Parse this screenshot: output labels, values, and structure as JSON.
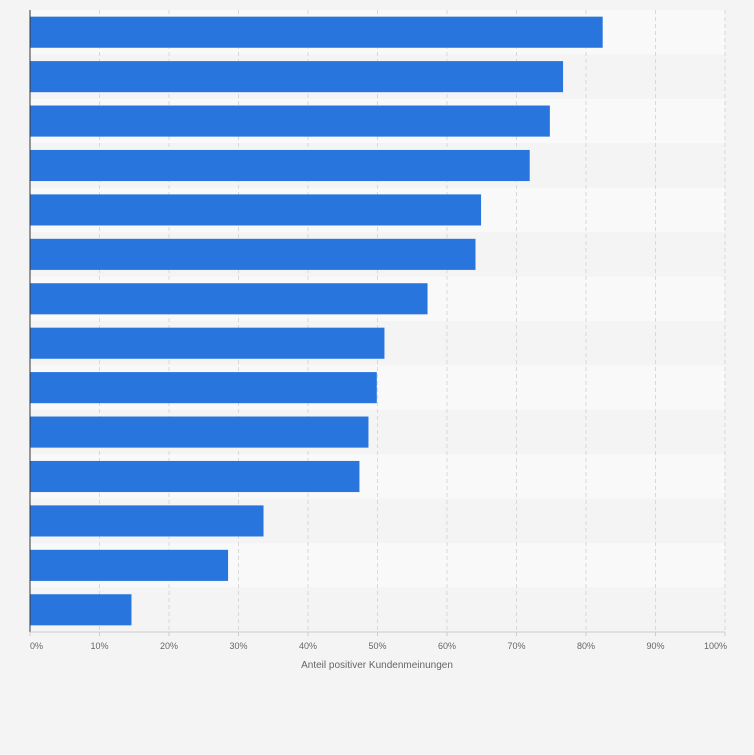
{
  "colors": {
    "background": "#f4f4f4",
    "band_light": "#f9f9f9",
    "band_dark": "#f4f4f4",
    "bar": "#2876dd",
    "grid": "#d9d9d9",
    "axis": "#333333",
    "tick_text": "#666666"
  },
  "chart_data": {
    "type": "bar",
    "orientation": "horizontal",
    "xlabel": "Anteil positiver Kundenmeinungen",
    "xlim": [
      0,
      100
    ],
    "ticks": [
      0,
      10,
      20,
      30,
      40,
      50,
      60,
      70,
      80,
      90,
      100
    ],
    "tick_labels": [
      "0%",
      "10%",
      "20%",
      "30%",
      "40%",
      "50%",
      "60%",
      "70%",
      "80%",
      "90%",
      "100%"
    ],
    "grid": true,
    "values": [
      82.4,
      76.7,
      74.8,
      71.9,
      64.9,
      64.1,
      57.2,
      51.0,
      49.9,
      48.7,
      47.4,
      33.6,
      28.5,
      14.6
    ]
  }
}
